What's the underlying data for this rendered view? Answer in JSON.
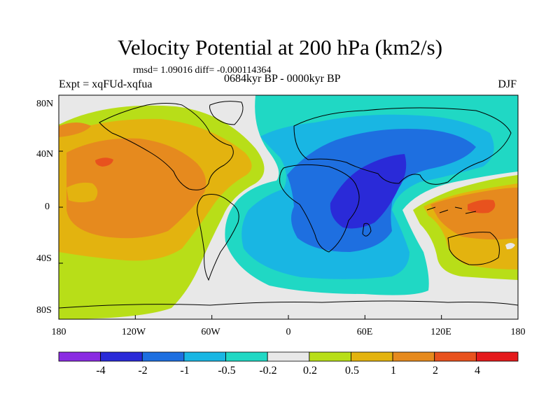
{
  "title": "Velocity Potential at 200 hPa (km2/s)",
  "stats": "rmsd= 1.09016 diff= -0.000114364",
  "experiment": "Expt = xqFUd-xqfua",
  "period": "0684kyr BP - 0000kyr BP",
  "season": "DJF",
  "lat_labels": [
    "80N",
    "40N",
    "0",
    "40S",
    "80S"
  ],
  "lon_labels": [
    "180",
    "120W",
    "60W",
    "0",
    "60E",
    "120E",
    "180"
  ],
  "colorbar": {
    "labels": [
      "-4",
      "-2",
      "-1",
      "-0.5",
      "-0.2",
      "0.2",
      "0.5",
      "1",
      "2",
      "4"
    ],
    "colors": [
      "#8a2be2",
      "#2a2ad8",
      "#1e6fe0",
      "#19b6e3",
      "#20d8c4",
      "#e8e8e8",
      "#b8de18",
      "#e3b30f",
      "#e68a1e",
      "#e8521e",
      "#e41a1c"
    ]
  },
  "colors": {
    "neutral": "#e8e8e8",
    "pos_02": "#b8de18",
    "pos_05": "#e3b30f",
    "pos_1": "#e68a1e",
    "pos_2": "#e8521e",
    "pos_4": "#e41a1c",
    "neg_02": "#20d8c4",
    "neg_05": "#19b6e3",
    "neg_1": "#1e6fe0",
    "neg_2": "#2a2ad8"
  }
}
